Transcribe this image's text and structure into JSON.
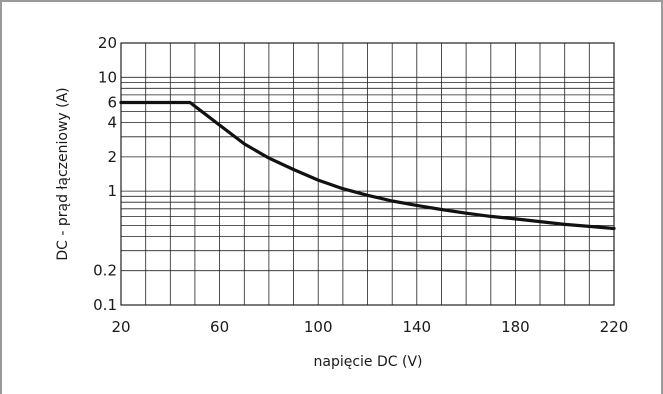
{
  "chart_data": {
    "type": "line",
    "title": "",
    "xlabel": "napięcie DC (V)",
    "ylabel": "DC - prąd łączeniowy (A)",
    "xlim": [
      20,
      220
    ],
    "ylim": [
      0.1,
      20
    ],
    "y_scale": "log",
    "grid": true,
    "x_ticks": [
      20,
      60,
      100,
      140,
      180,
      220
    ],
    "x_tick_labels": [
      "20",
      "60",
      "100",
      "140",
      "180",
      "220"
    ],
    "y_ticks": [
      0.1,
      0.2,
      1,
      2,
      4,
      6,
      10,
      20
    ],
    "y_tick_labels": [
      "0.1",
      "0.2",
      "1",
      "2",
      "4",
      "6",
      "10",
      "20"
    ],
    "series": [
      {
        "name": "",
        "x": [
          20,
          30,
          40,
          48,
          55,
          60,
          70,
          80,
          90,
          100,
          110,
          120,
          130,
          140,
          150,
          160,
          170,
          180,
          190,
          200,
          210,
          220
        ],
        "y": [
          6,
          6,
          6,
          6,
          4.6,
          3.8,
          2.6,
          1.95,
          1.55,
          1.25,
          1.05,
          0.92,
          0.82,
          0.75,
          0.69,
          0.64,
          0.6,
          0.57,
          0.54,
          0.51,
          0.49,
          0.47
        ]
      }
    ]
  },
  "colors": {
    "grid": "#222222",
    "curve": "#111111",
    "frame": "#9a9a9a"
  }
}
